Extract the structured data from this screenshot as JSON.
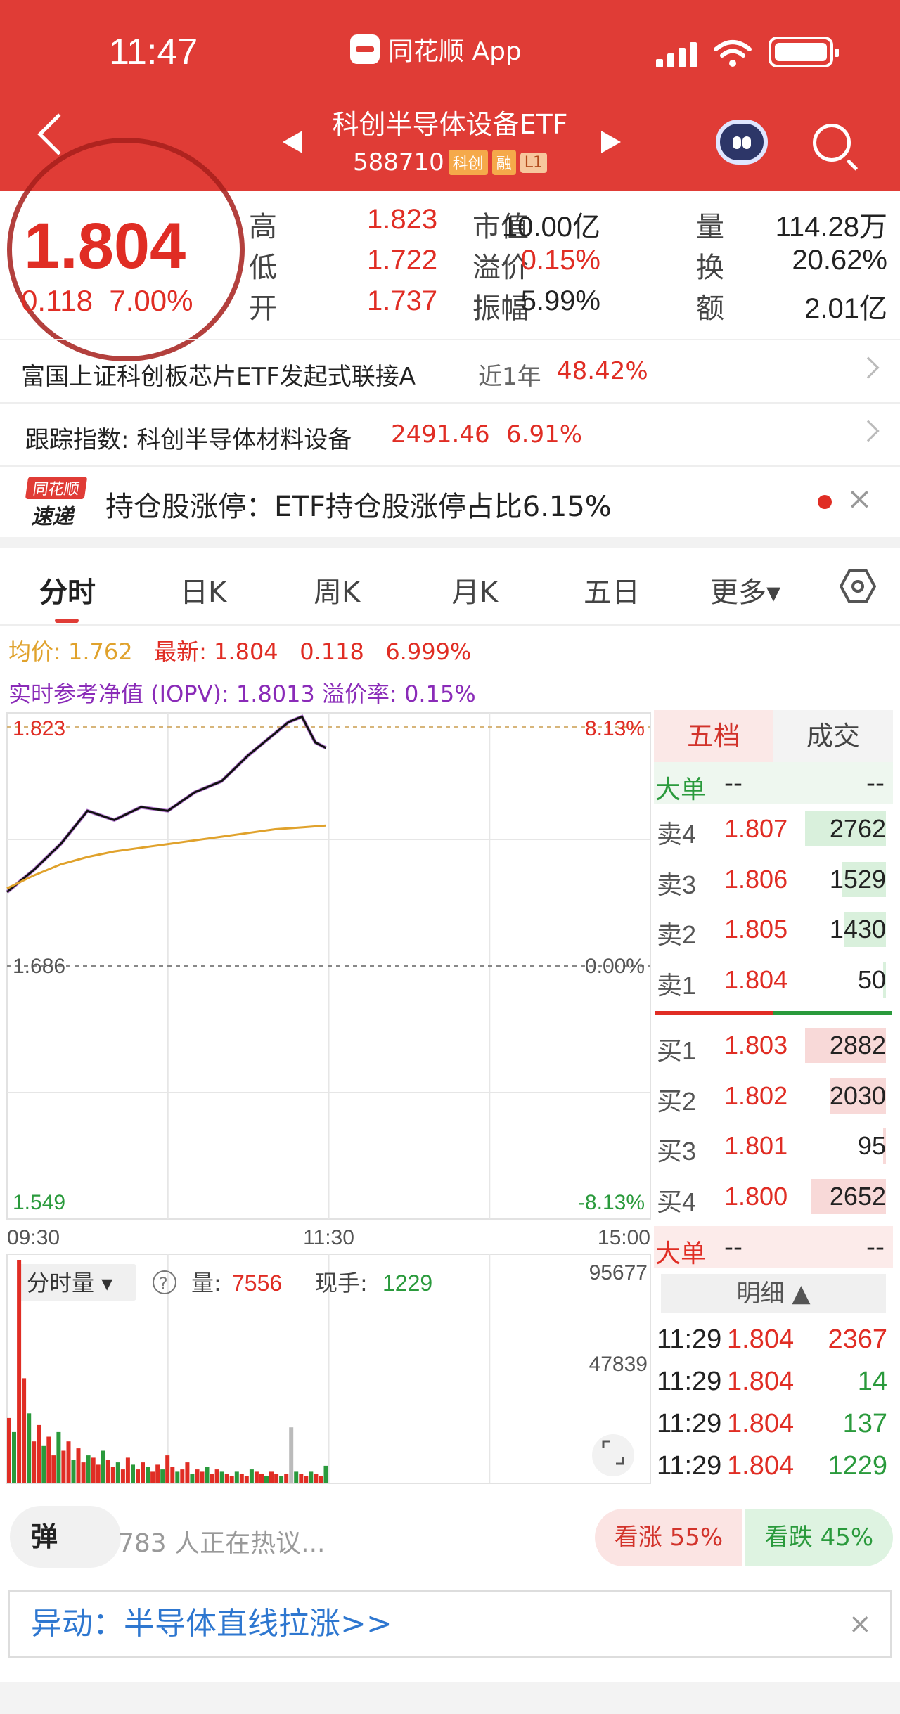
{
  "status_bar": {
    "time": "11:47",
    "app_name": "同花顺 App"
  },
  "header": {
    "title": "科创半导体设备ETF",
    "code": "588710",
    "tags": [
      "科创",
      "融",
      "L1"
    ]
  },
  "quote": {
    "price": "1.804",
    "change": "0.118",
    "change_pct": "7.00%",
    "rows": [
      {
        "l1": "高",
        "v1": "1.823",
        "l2": "市值",
        "v2": "10.00亿",
        "l3": "量",
        "v3": "114.28万"
      },
      {
        "l1": "低",
        "v1": "1.722",
        "l2": "溢价",
        "v2": "0.15%",
        "l3": "换",
        "v3": "20.62%"
      },
      {
        "l1": "开",
        "v1": "1.737",
        "l2": "振幅",
        "v2": "5.99%",
        "l3": "额",
        "v3": "2.01亿"
      }
    ]
  },
  "links": {
    "fund_name": "富国上证科创板芯片ETF发起式联接A",
    "fund_period": "近1年",
    "fund_return": "48.42%",
    "index_label": "跟踪指数: 科创半导体材料设备",
    "index_value": "2491.46",
    "index_pct": "6.91%"
  },
  "news": {
    "logo_top": "同花顺",
    "logo_bottom": "速递",
    "text": "持仓股涨停：ETF持仓股涨停占比6.15%",
    "close": "×"
  },
  "tabs": [
    "分时",
    "日K",
    "周K",
    "月K",
    "五日",
    "更多▾"
  ],
  "legend": {
    "avg": "均价: 1.762",
    "latest": "最新: 1.804",
    "latest_change": "0.118",
    "latest_pct": "6.999%",
    "iopv": "实时参考净值 (IOPV): 1.8013 溢价率: 0.15%"
  },
  "chart_data": {
    "type": "line",
    "title": "",
    "y_ticks_left": [
      "1.823",
      "1.686",
      "1.549"
    ],
    "y_ticks_right": [
      "8.13%",
      "0.00%",
      "-8.13%"
    ],
    "x_ticks": [
      "09:30",
      "11:30",
      "15:00"
    ],
    "ylim": [
      1.549,
      1.823
    ],
    "series": [
      {
        "name": "最新",
        "x": [
          "09:30",
          "09:40",
          "09:50",
          "10:00",
          "10:10",
          "10:20",
          "10:30",
          "10:40",
          "10:50",
          "11:00",
          "11:10",
          "11:15",
          "11:20",
          "11:25",
          "11:29"
        ],
        "values": [
          1.726,
          1.738,
          1.752,
          1.77,
          1.765,
          1.772,
          1.77,
          1.78,
          1.786,
          1.8,
          1.812,
          1.818,
          1.821,
          1.807,
          1.804
        ]
      },
      {
        "name": "均价",
        "x": [
          "09:30",
          "09:40",
          "09:50",
          "10:00",
          "10:10",
          "10:20",
          "10:30",
          "10:40",
          "10:50",
          "11:00",
          "11:10",
          "11:20",
          "11:29"
        ],
        "values": [
          1.728,
          1.735,
          1.741,
          1.745,
          1.748,
          1.75,
          1.752,
          1.754,
          1.756,
          1.758,
          1.76,
          1.761,
          1.762
        ]
      }
    ],
    "volume": {
      "label": "分时量",
      "vol_label": "量:",
      "vol_value": "7556",
      "hand_label": "现手:",
      "hand_value": "1229",
      "max_label": "95677",
      "mid_label": "47839",
      "ylim": [
        0,
        95677
      ],
      "values": [
        28000,
        22000,
        95677,
        45000,
        30000,
        18000,
        25000,
        16000,
        20000,
        12000,
        22000,
        14000,
        18000,
        10000,
        15000,
        9000,
        12000,
        11000,
        8000,
        14000,
        10000,
        7000,
        9000,
        6000,
        11000,
        8000,
        6000,
        9000,
        7000,
        5000,
        8000,
        6000,
        12000,
        7000,
        5000,
        6000,
        9000,
        4000,
        6000,
        5000,
        7000,
        4000,
        6000,
        5000,
        4000,
        3000,
        5000,
        4000,
        3000,
        6000,
        5000,
        4000,
        3000,
        5000,
        4000,
        3000,
        4000,
        24000,
        5000,
        4000,
        3000,
        5000,
        4000,
        3000,
        7556
      ]
    }
  },
  "orderbook": {
    "tab_active": "五档",
    "tab_other": "成交",
    "big_label": "大单",
    "dash": "--",
    "asks": [
      {
        "label": "卖4",
        "price": "1.807",
        "vol": "2762",
        "ratio": 1.0
      },
      {
        "label": "卖3",
        "price": "1.806",
        "vol": "1529",
        "ratio": 0.55
      },
      {
        "label": "卖2",
        "price": "1.805",
        "vol": "1430",
        "ratio": 0.52
      },
      {
        "label": "卖1",
        "price": "1.804",
        "vol": "50",
        "ratio": 0.02
      }
    ],
    "bids": [
      {
        "label": "买1",
        "price": "1.803",
        "vol": "2882",
        "ratio": 1.0
      },
      {
        "label": "买2",
        "price": "1.802",
        "vol": "2030",
        "ratio": 0.7
      },
      {
        "label": "买3",
        "price": "1.801",
        "vol": "95",
        "ratio": 0.03
      },
      {
        "label": "买4",
        "price": "1.800",
        "vol": "2652",
        "ratio": 0.92
      }
    ],
    "detail_label": "明细 ▲",
    "trades": [
      {
        "time": "11:29",
        "price": "1.804",
        "vol": "2367",
        "side": "buy"
      },
      {
        "time": "11:29",
        "price": "1.804",
        "vol": "14",
        "side": "sell"
      },
      {
        "time": "11:29",
        "price": "1.804",
        "vol": "137",
        "side": "sell"
      },
      {
        "time": "11:29",
        "price": "1.804",
        "vol": "1229",
        "side": "sell"
      }
    ]
  },
  "bottom": {
    "dan": "弹",
    "hot_text": "783 人正在热议...",
    "up": "看涨 55%",
    "down": "看跌 45%"
  },
  "alert": {
    "text": "异动：半导体直线拉涨>>",
    "close": "×"
  },
  "colors": {
    "brand": "#e03c36",
    "up": "#e02d24",
    "down": "#2a9a3c",
    "avg_line": "#e0a22c",
    "iopv": "#8a2bb8"
  }
}
